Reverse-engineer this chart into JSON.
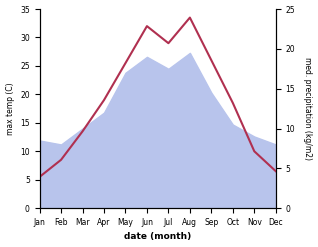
{
  "months": [
    "Jan",
    "Feb",
    "Mar",
    "Apr",
    "May",
    "Jun",
    "Jul",
    "Aug",
    "Sep",
    "Oct",
    "Nov",
    "Dec"
  ],
  "temperature": [
    5.5,
    8.5,
    13.5,
    19.0,
    25.5,
    32.0,
    29.0,
    33.5,
    26.0,
    18.5,
    10.0,
    6.5
  ],
  "precipitation": [
    8.5,
    8.0,
    10.0,
    12.0,
    17.0,
    19.0,
    17.5,
    19.5,
    14.5,
    10.5,
    9.0,
    8.0
  ],
  "temp_color": "#b03050",
  "precip_color": "#b8c4ec",
  "left_ylim": [
    0,
    35
  ],
  "right_ylim": [
    0,
    25
  ],
  "left_yticks": [
    0,
    5,
    10,
    15,
    20,
    25,
    30,
    35
  ],
  "right_yticks": [
    0,
    5,
    10,
    15,
    20,
    25
  ],
  "xlabel": "date (month)",
  "ylabel_left": "max temp (C)",
  "ylabel_right": "med. precipitation (kg/m2)",
  "background_color": "#ffffff"
}
